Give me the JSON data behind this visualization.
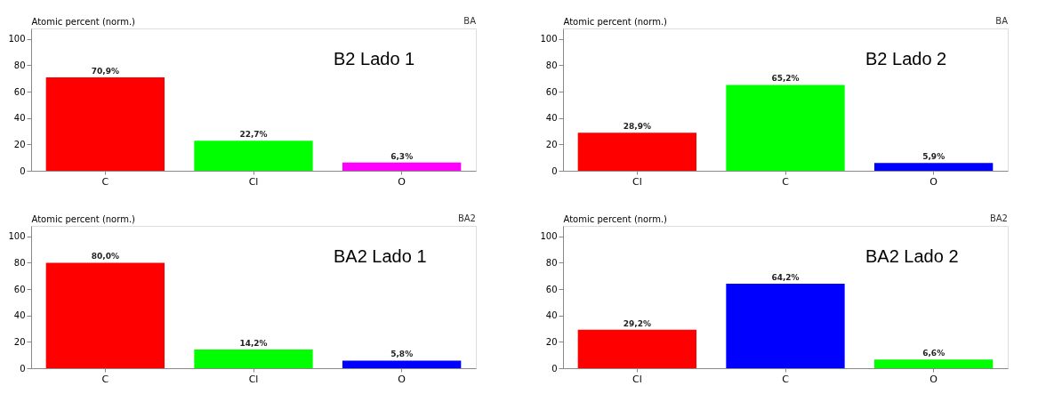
{
  "chart_data": [
    {
      "type": "bar",
      "title": "B2 Lado 1",
      "ylabel": "Atomic percent (norm.)",
      "annotations": [
        "BA"
      ],
      "categories": [
        "C",
        "Cl",
        "O"
      ],
      "values": [
        70.9,
        22.7,
        6.3
      ],
      "colors": [
        "#ff0000",
        "#00ff00",
        "#ff00ff"
      ],
      "value_labels": [
        "70,9%",
        "22,7%",
        "6,3%"
      ],
      "ylim": [
        0,
        108
      ],
      "yticks": [
        0,
        20,
        40,
        60,
        80,
        100
      ],
      "grid": false
    },
    {
      "type": "bar",
      "title": "B2 Lado 2",
      "ylabel": "Atomic percent (norm.)",
      "annotations": [
        "BA"
      ],
      "categories": [
        "Cl",
        "C",
        "O"
      ],
      "values": [
        28.9,
        65.2,
        5.9
      ],
      "colors": [
        "#ff0000",
        "#00ff00",
        "#0000ff"
      ],
      "value_labels": [
        "28,9%",
        "65,2%",
        "5,9%"
      ],
      "ylim": [
        0,
        108
      ],
      "yticks": [
        0,
        20,
        40,
        60,
        80,
        100
      ],
      "grid": false
    },
    {
      "type": "bar",
      "title": "BA2 Lado 1",
      "ylabel": "Atomic percent (norm.)",
      "annotations": [
        "BA2"
      ],
      "categories": [
        "C",
        "Cl",
        "O"
      ],
      "values": [
        80.0,
        14.2,
        5.8
      ],
      "colors": [
        "#ff0000",
        "#00ff00",
        "#0000ff"
      ],
      "value_labels": [
        "80,0%",
        "14,2%",
        "5,8%"
      ],
      "ylim": [
        0,
        108
      ],
      "yticks": [
        0,
        20,
        40,
        60,
        80,
        100
      ],
      "grid": false
    },
    {
      "type": "bar",
      "title": "BA2 Lado 2",
      "ylabel": "Atomic percent (norm.)",
      "annotations": [
        "BA2"
      ],
      "categories": [
        "Cl",
        "C",
        "O"
      ],
      "values": [
        29.2,
        64.2,
        6.6
      ],
      "colors": [
        "#ff0000",
        "#0000ff",
        "#00ff00"
      ],
      "value_labels": [
        "29,2%",
        "64,2%",
        "6,6%"
      ],
      "ylim": [
        0,
        108
      ],
      "yticks": [
        0,
        20,
        40,
        60,
        80,
        100
      ],
      "grid": false
    }
  ]
}
